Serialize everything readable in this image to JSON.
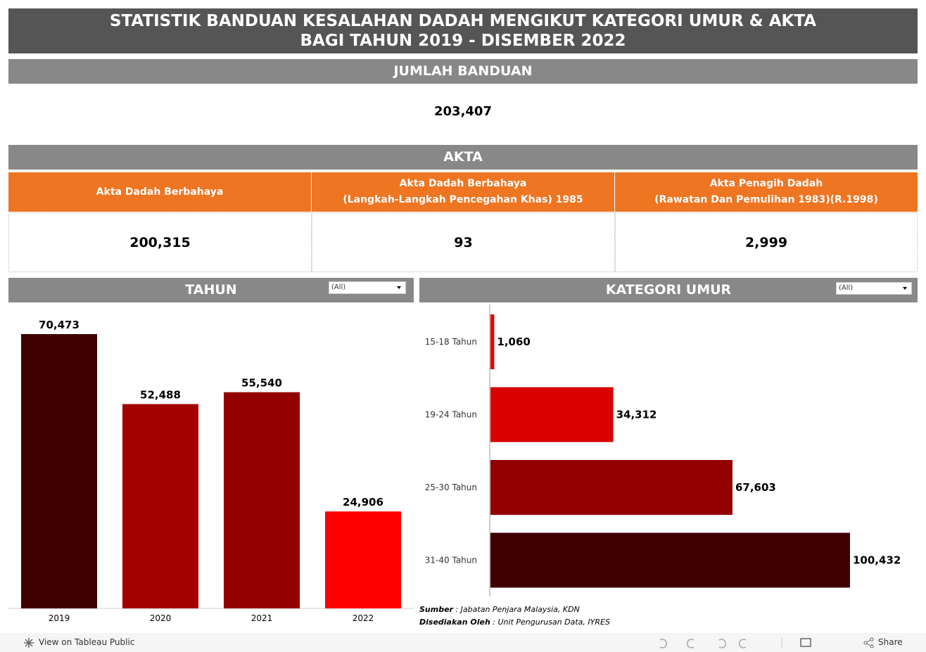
{
  "header": {
    "title_lines": [
      "STATISTIK BANDUAN KESALAHAN DADAH MENGIKUT KATEGORI UMUR & AKTA",
      "BAGI TAHUN 2019 - DISEMBER 2022"
    ]
  },
  "total": {
    "title": "JUMLAH BANDUAN",
    "value": "203,407"
  },
  "akta": {
    "title": "AKTA",
    "columns": [
      {
        "lines": [
          "Akta Dadah Berbahaya"
        ],
        "value": "200,315"
      },
      {
        "lines": [
          "Akta Dadah Berbahaya",
          "(Langkah-Langkah Pencegahan Khas) 1985"
        ],
        "value": "93"
      },
      {
        "lines": [
          "Akta Penagih Dadah",
          "(Rawatan Dan Pemulihan 1983)(R.1998)"
        ],
        "value": "2,999"
      }
    ]
  },
  "chart_data": [
    {
      "type": "bar",
      "title": "TAHUN",
      "filter": "(All)",
      "categories": [
        "2019",
        "2020",
        "2021",
        "2022"
      ],
      "values": [
        70473,
        52488,
        55540,
        24906
      ],
      "value_labels": [
        "70,473",
        "52,488",
        "55,540",
        "24,906"
      ],
      "colors": [
        "#3f0000",
        "#a50000",
        "#920000",
        "#ff0000"
      ]
    },
    {
      "type": "hbar",
      "title": "KATEGORI UMUR",
      "filter": "(All)",
      "categories": [
        "15-18 Tahun",
        "19-24 Tahun",
        "25-30 Tahun",
        "31-40 Tahun"
      ],
      "values": [
        1060,
        34312,
        67603,
        100432
      ],
      "value_labels": [
        "1,060",
        "34,312",
        "67,603",
        "100,432"
      ],
      "colors": [
        "#e60000",
        "#d90000",
        "#920000",
        "#3f0000"
      ]
    }
  ],
  "source": {
    "label1": "Sumber",
    "text1": " : Jabatan Penjara Malaysia, KDN",
    "label2": "Disediakan Oleh",
    "text2": " : Unit Pengurusan Data, IYRES"
  },
  "footer": {
    "view_link": "View on Tableau Public",
    "share": "Share"
  }
}
